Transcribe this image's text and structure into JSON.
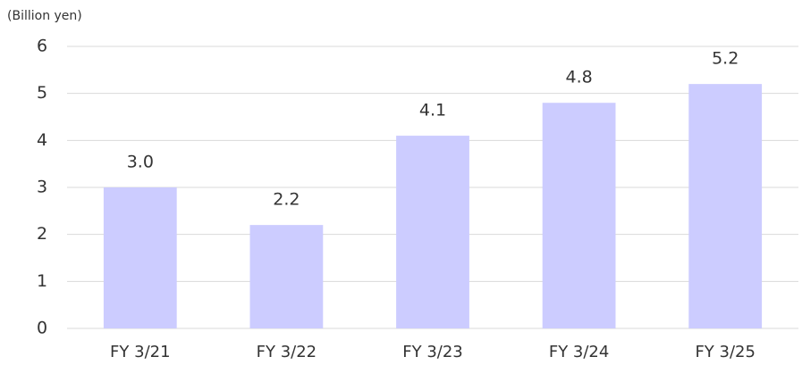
{
  "chart_data": {
    "type": "bar",
    "y_label": "(Billion yen)",
    "categories": [
      "FY 3/21",
      "FY 3/22",
      "FY 3/23",
      "FY 3/24",
      "FY 3/25"
    ],
    "values": [
      3.0,
      2.2,
      4.1,
      4.8,
      5.2
    ],
    "value_labels": [
      "3.0",
      "2.2",
      "4.1",
      "4.8",
      "5.2"
    ],
    "color": "#ccccff",
    "ylim": [
      0,
      6
    ],
    "yticks": [
      0,
      1,
      2,
      3,
      4,
      5,
      6
    ],
    "grid": true
  }
}
